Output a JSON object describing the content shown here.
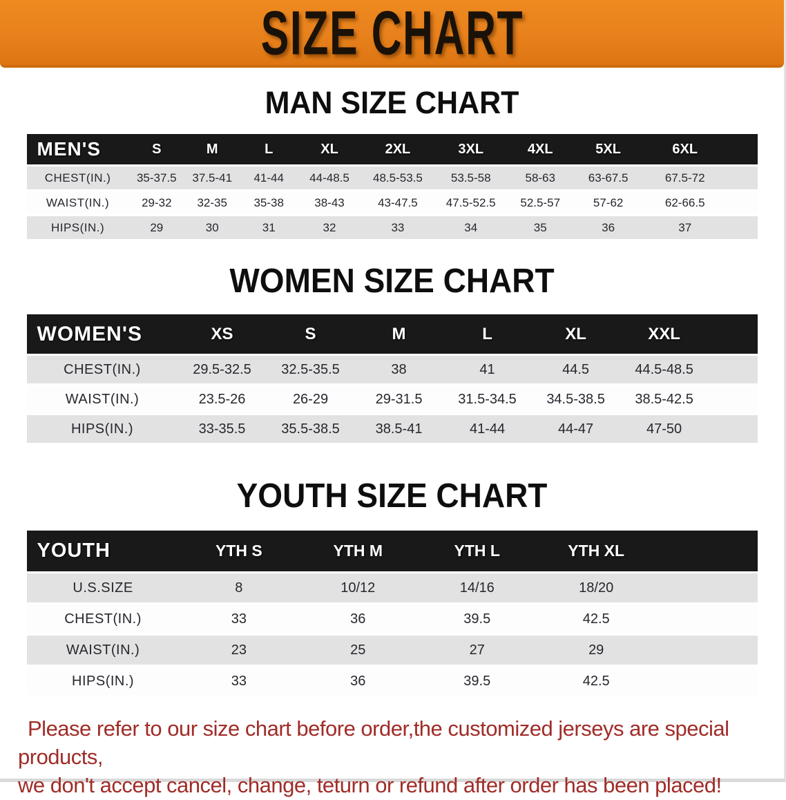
{
  "banner": {
    "title": "SIZE CHART",
    "bg_color": "#e8811c",
    "text_color": "#1a1208"
  },
  "colors": {
    "header_band": "#191919",
    "row_gray": "#e2e2e2",
    "row_white": "#fdfdfd",
    "footer_red": "#a02c28"
  },
  "sections": [
    {
      "id": "men",
      "heading": "MAN SIZE CHART",
      "table": {
        "label": "MEN'S",
        "sizes": [
          "S",
          "M",
          "L",
          "XL",
          "2XL",
          "3XL",
          "4XL",
          "5XL",
          "6XL"
        ],
        "col_widths": [
          "14%",
          "7.6%",
          "7.6%",
          "7.9%",
          "8.7%",
          "10%",
          "10%",
          "9%",
          "9.6%",
          "11.4%",
          "4.2%"
        ],
        "rows": [
          {
            "label": "CHEST(IN.)",
            "values": [
              "35-37.5",
              "37.5-41",
              "41-44",
              "44-48.5",
              "48.5-53.5",
              "53.5-58",
              "58-63",
              "63-67.5",
              "67.5-72"
            ]
          },
          {
            "label": "WAIST(IN.)",
            "values": [
              "29-32",
              "32-35",
              "35-38",
              "38-43",
              "43-47.5",
              "47.5-52.5",
              "52.5-57",
              "57-62",
              "62-66.5"
            ]
          },
          {
            "label": "HIPS(IN.)",
            "values": [
              "29",
              "30",
              "31",
              "32",
              "33",
              "34",
              "35",
              "36",
              "37"
            ]
          }
        ]
      }
    },
    {
      "id": "women",
      "heading": "WOMEN SIZE CHART",
      "table": {
        "label": "WOMEN'S",
        "sizes": [
          "XS",
          "S",
          "M",
          "L",
          "XL",
          "XXL"
        ],
        "col_widths": [
          "20.7%",
          "12.1%",
          "12.1%",
          "12.1%",
          "12.1%",
          "12.1%",
          "12.1%",
          "6.7%"
        ],
        "rows": [
          {
            "label": "CHEST(IN.)",
            "values": [
              "29.5-32.5",
              "32.5-35.5",
              "38",
              "41",
              "44.5",
              "44.5-48.5"
            ]
          },
          {
            "label": "WAIST(IN.)",
            "values": [
              "23.5-26",
              "26-29",
              "29-31.5",
              "31.5-34.5",
              "34.5-38.5",
              "38.5-42.5"
            ]
          },
          {
            "label": "HIPS(IN.)",
            "values": [
              "33-35.5",
              "35.5-38.5",
              "38.5-41",
              "41-44",
              "44-47",
              "47-50"
            ]
          }
        ]
      }
    },
    {
      "id": "youth",
      "heading": "YOUTH SIZE CHART",
      "table": {
        "label": "YOUTH",
        "sizes": [
          "YTH S",
          "YTH M",
          "YTH L",
          "YTH XL"
        ],
        "col_widths": [
          "20.9%",
          "16.3%",
          "16.3%",
          "16.3%",
          "16.3%",
          "13.9%"
        ],
        "rows": [
          {
            "label": "U.S.SIZE",
            "values": [
              "8",
              "10/12",
              "14/16",
              "18/20"
            ]
          },
          {
            "label": "CHEST(IN.)",
            "values": [
              "33",
              "36",
              "39.5",
              "42.5"
            ]
          },
          {
            "label": "WAIST(IN.)",
            "values": [
              "23",
              "25",
              "27",
              "29"
            ]
          },
          {
            "label": "HIPS(IN.)",
            "values": [
              "33",
              "36",
              "39.5",
              "42.5"
            ]
          }
        ]
      }
    }
  ],
  "footer": {
    "line1": "Please refer to our size chart before order,the customized jerseys are special products,",
    "line2": "we don't accept cancel, change, teturn or refund after order has been placed!"
  }
}
